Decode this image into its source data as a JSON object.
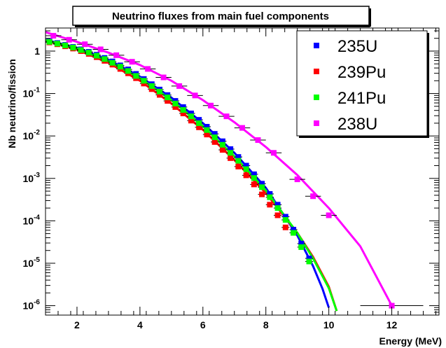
{
  "chart_data": {
    "type": "scatter",
    "title": "Neutrino fluxes from main fuel components",
    "xlabel": "Energy (MeV)",
    "ylabel": "Nb neutrino/fission",
    "xlim": [
      1.0,
      13.5
    ],
    "ylim": [
      6e-07,
      3.5
    ],
    "yscale": "log",
    "grid": false,
    "legend_position": "top-right",
    "x_ticks": [
      2,
      4,
      6,
      8,
      10,
      12
    ],
    "x_tick_labels": [
      "2",
      "4",
      "6",
      "8",
      "10",
      "12"
    ],
    "y_ticks": [
      1e-06,
      1e-05,
      0.0001,
      0.001,
      0.01,
      0.1,
      1
    ],
    "y_tick_labels": [
      {
        "base": "10",
        "exp": "-6"
      },
      {
        "base": "10",
        "exp": "-5"
      },
      {
        "base": "10",
        "exp": "-4"
      },
      {
        "base": "10",
        "exp": "-3"
      },
      {
        "base": "10",
        "exp": "-2"
      },
      {
        "base": "10",
        "exp": "-1"
      },
      {
        "base": "1",
        "exp": ""
      }
    ],
    "series": [
      {
        "name": "235U",
        "color": "#0000ff",
        "points": [
          {
            "x": 1.125,
            "y": 1.7
          },
          {
            "x": 1.375,
            "y": 1.55
          },
          {
            "x": 1.625,
            "y": 1.4
          },
          {
            "x": 1.875,
            "y": 1.25
          },
          {
            "x": 2.125,
            "y": 1.1
          },
          {
            "x": 2.375,
            "y": 0.96
          },
          {
            "x": 2.625,
            "y": 0.82
          },
          {
            "x": 2.875,
            "y": 0.69
          },
          {
            "x": 3.125,
            "y": 0.57
          },
          {
            "x": 3.375,
            "y": 0.46
          },
          {
            "x": 3.625,
            "y": 0.37
          },
          {
            "x": 3.875,
            "y": 0.29
          },
          {
            "x": 4.125,
            "y": 0.22
          },
          {
            "x": 4.375,
            "y": 0.166
          },
          {
            "x": 4.625,
            "y": 0.124
          },
          {
            "x": 4.875,
            "y": 0.092
          },
          {
            "x": 5.125,
            "y": 0.067
          },
          {
            "x": 5.375,
            "y": 0.048
          },
          {
            "x": 5.625,
            "y": 0.034
          },
          {
            "x": 5.875,
            "y": 0.024
          },
          {
            "x": 6.125,
            "y": 0.0165
          },
          {
            "x": 6.375,
            "y": 0.0112
          },
          {
            "x": 6.625,
            "y": 0.0075
          },
          {
            "x": 6.875,
            "y": 0.0049
          },
          {
            "x": 7.125,
            "y": 0.0032
          },
          {
            "x": 7.375,
            "y": 0.002
          },
          {
            "x": 7.625,
            "y": 0.00125
          },
          {
            "x": 7.875,
            "y": 0.00075
          },
          {
            "x": 8.125,
            "y": 0.00043
          },
          {
            "x": 8.375,
            "y": 0.00024
          },
          {
            "x": 8.625,
            "y": 0.000125
          },
          {
            "x": 8.875,
            "y": 6.2e-05
          },
          {
            "x": 9.125,
            "y": 2.9e-05
          },
          {
            "x": 9.375,
            "y": 1.3e-05
          }
        ],
        "curve": [
          {
            "x": 1.0,
            "y": 1.85
          },
          {
            "x": 2.0,
            "y": 1.2
          },
          {
            "x": 3.0,
            "y": 0.62
          },
          {
            "x": 4.0,
            "y": 0.25
          },
          {
            "x": 5.0,
            "y": 0.08
          },
          {
            "x": 6.0,
            "y": 0.02
          },
          {
            "x": 7.0,
            "y": 0.004
          },
          {
            "x": 8.0,
            "y": 0.0006
          },
          {
            "x": 9.0,
            "y": 4.5e-05
          },
          {
            "x": 9.5,
            "y": 8.5e-06
          },
          {
            "x": 9.8,
            "y": 2.5e-06
          },
          {
            "x": 10.0,
            "y": 9e-07
          }
        ]
      },
      {
        "name": "239Pu",
        "color": "#ff0000",
        "points": [
          {
            "x": 1.125,
            "y": 1.6
          },
          {
            "x": 1.375,
            "y": 1.45
          },
          {
            "x": 1.625,
            "y": 1.3
          },
          {
            "x": 1.875,
            "y": 1.15
          },
          {
            "x": 2.125,
            "y": 1.0
          },
          {
            "x": 2.375,
            "y": 0.86
          },
          {
            "x": 2.625,
            "y": 0.72
          },
          {
            "x": 2.875,
            "y": 0.59
          },
          {
            "x": 3.125,
            "y": 0.48
          },
          {
            "x": 3.375,
            "y": 0.38
          },
          {
            "x": 3.625,
            "y": 0.3
          },
          {
            "x": 3.875,
            "y": 0.23
          },
          {
            "x": 4.125,
            "y": 0.172
          },
          {
            "x": 4.375,
            "y": 0.127
          },
          {
            "x": 4.625,
            "y": 0.093
          },
          {
            "x": 4.875,
            "y": 0.067
          },
          {
            "x": 5.125,
            "y": 0.048
          },
          {
            "x": 5.375,
            "y": 0.034
          },
          {
            "x": 5.625,
            "y": 0.023
          },
          {
            "x": 5.875,
            "y": 0.016
          },
          {
            "x": 6.125,
            "y": 0.0108
          },
          {
            "x": 6.375,
            "y": 0.0072
          },
          {
            "x": 6.625,
            "y": 0.0047
          },
          {
            "x": 6.875,
            "y": 0.003
          },
          {
            "x": 7.125,
            "y": 0.0019
          },
          {
            "x": 7.375,
            "y": 0.00118
          },
          {
            "x": 7.625,
            "y": 0.00072
          },
          {
            "x": 7.875,
            "y": 0.00042
          },
          {
            "x": 8.125,
            "y": 0.00024
          },
          {
            "x": 8.375,
            "y": 0.000135
          },
          {
            "x": 8.625,
            "y": 7e-05
          }
        ],
        "curve": [
          {
            "x": 1.0,
            "y": 1.75
          },
          {
            "x": 2.0,
            "y": 1.08
          },
          {
            "x": 3.0,
            "y": 0.53
          },
          {
            "x": 4.0,
            "y": 0.2
          },
          {
            "x": 5.0,
            "y": 0.058
          },
          {
            "x": 6.0,
            "y": 0.014
          },
          {
            "x": 7.0,
            "y": 0.0027
          },
          {
            "x": 8.0,
            "y": 0.00045
          },
          {
            "x": 9.0,
            "y": 5.2e-05
          },
          {
            "x": 9.5,
            "y": 1.4e-05
          },
          {
            "x": 10.0,
            "y": 2.8e-06
          },
          {
            "x": 10.25,
            "y": 7.5e-07
          }
        ]
      },
      {
        "name": "241Pu",
        "color": "#00ff00",
        "points": [
          {
            "x": 1.125,
            "y": 1.65
          },
          {
            "x": 1.375,
            "y": 1.5
          },
          {
            "x": 1.625,
            "y": 1.36
          },
          {
            "x": 1.875,
            "y": 1.21
          },
          {
            "x": 2.125,
            "y": 1.06
          },
          {
            "x": 2.375,
            "y": 0.92
          },
          {
            "x": 2.625,
            "y": 0.78
          },
          {
            "x": 2.875,
            "y": 0.65
          },
          {
            "x": 3.125,
            "y": 0.53
          },
          {
            "x": 3.375,
            "y": 0.43
          },
          {
            "x": 3.625,
            "y": 0.34
          },
          {
            "x": 3.875,
            "y": 0.26
          },
          {
            "x": 4.125,
            "y": 0.2
          },
          {
            "x": 4.375,
            "y": 0.15
          },
          {
            "x": 4.625,
            "y": 0.111
          },
          {
            "x": 4.875,
            "y": 0.081
          },
          {
            "x": 5.125,
            "y": 0.058
          },
          {
            "x": 5.375,
            "y": 0.041
          },
          {
            "x": 5.625,
            "y": 0.029
          },
          {
            "x": 5.875,
            "y": 0.02
          },
          {
            "x": 6.125,
            "y": 0.0138
          },
          {
            "x": 6.375,
            "y": 0.0093
          },
          {
            "x": 6.625,
            "y": 0.0062
          },
          {
            "x": 6.875,
            "y": 0.004
          },
          {
            "x": 7.125,
            "y": 0.0026
          },
          {
            "x": 7.375,
            "y": 0.00165
          },
          {
            "x": 7.625,
            "y": 0.00102
          },
          {
            "x": 7.875,
            "y": 0.00062
          },
          {
            "x": 8.125,
            "y": 0.00036
          },
          {
            "x": 8.375,
            "y": 0.0002
          },
          {
            "x": 8.625,
            "y": 0.000105
          },
          {
            "x": 8.875,
            "y": 5.2e-05
          },
          {
            "x": 9.125,
            "y": 2.4e-05
          },
          {
            "x": 9.375,
            "y": 1.1e-05
          }
        ],
        "curve": [
          {
            "x": 1.0,
            "y": 1.8
          },
          {
            "x": 2.0,
            "y": 1.14
          },
          {
            "x": 3.0,
            "y": 0.58
          },
          {
            "x": 4.0,
            "y": 0.23
          },
          {
            "x": 5.0,
            "y": 0.07
          },
          {
            "x": 6.0,
            "y": 0.017
          },
          {
            "x": 7.0,
            "y": 0.0033
          },
          {
            "x": 8.0,
            "y": 0.00052
          },
          {
            "x": 9.0,
            "y": 5.2e-05
          },
          {
            "x": 9.5,
            "y": 1.3e-05
          },
          {
            "x": 10.0,
            "y": 2.6e-06
          },
          {
            "x": 10.25,
            "y": 7.5e-07
          }
        ]
      },
      {
        "name": "238U",
        "color": "#ff00ff",
        "points": [
          {
            "x": 1.25,
            "y": 2.3
          },
          {
            "x": 1.75,
            "y": 1.85
          },
          {
            "x": 2.25,
            "y": 1.45
          },
          {
            "x": 2.75,
            "y": 1.1
          },
          {
            "x": 3.25,
            "y": 0.8
          },
          {
            "x": 3.75,
            "y": 0.56
          },
          {
            "x": 4.25,
            "y": 0.38
          },
          {
            "x": 4.75,
            "y": 0.24
          },
          {
            "x": 5.25,
            "y": 0.15
          },
          {
            "x": 5.75,
            "y": 0.09
          },
          {
            "x": 6.25,
            "y": 0.052
          },
          {
            "x": 6.75,
            "y": 0.029
          },
          {
            "x": 7.25,
            "y": 0.0155
          },
          {
            "x": 7.75,
            "y": 0.008
          },
          {
            "x": 8.25,
            "y": 0.004
          },
          {
            "x": 9.0,
            "y": 0.00095
          },
          {
            "x": 9.5,
            "y": 0.00038
          },
          {
            "x": 10.0,
            "y": 0.000135
          },
          {
            "x": 12.0,
            "y": 1e-06
          }
        ],
        "curve": [
          {
            "x": 1.0,
            "y": 2.8
          },
          {
            "x": 2.0,
            "y": 1.65
          },
          {
            "x": 3.0,
            "y": 0.92
          },
          {
            "x": 4.0,
            "y": 0.47
          },
          {
            "x": 5.0,
            "y": 0.2
          },
          {
            "x": 6.0,
            "y": 0.07
          },
          {
            "x": 7.0,
            "y": 0.021
          },
          {
            "x": 8.0,
            "y": 0.0055
          },
          {
            "x": 9.0,
            "y": 0.0012
          },
          {
            "x": 10.0,
            "y": 0.0002
          },
          {
            "x": 11.0,
            "y": 2.5e-05
          },
          {
            "x": 12.0,
            "y": 1e-06
          }
        ]
      }
    ]
  }
}
